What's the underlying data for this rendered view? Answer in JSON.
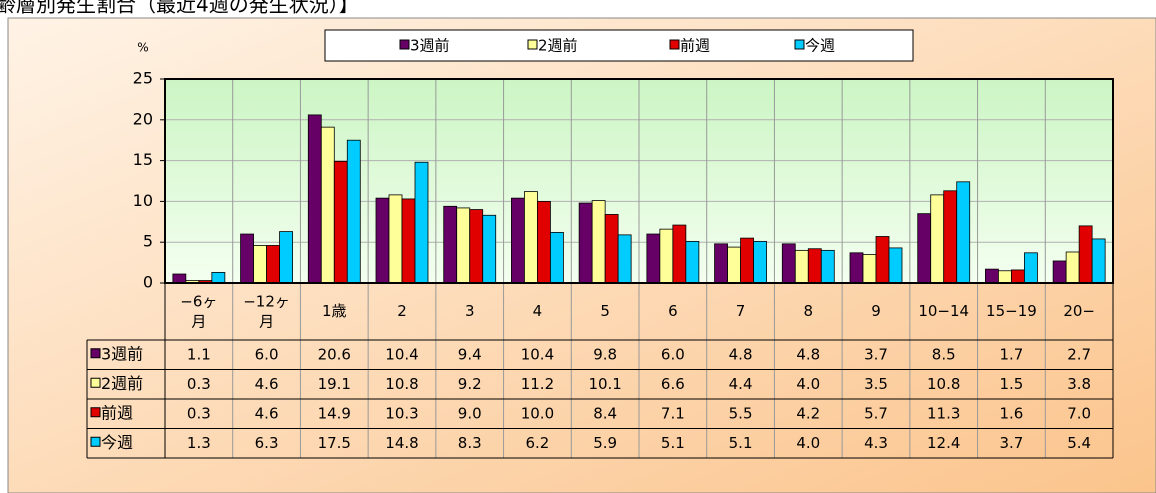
{
  "chart_data": {
    "type": "bar",
    "title": "齢層別発生割合（最近4週の発生状況）】",
    "y_label": "%",
    "categories": [
      "−6ヶ月",
      "−12ヶ月",
      "1歳",
      "2",
      "3",
      "4",
      "5",
      "6",
      "7",
      "8",
      "9",
      "10−14",
      "15−19",
      "20−"
    ],
    "series": [
      {
        "name": "3週前",
        "color": "#660066",
        "values": [
          1.1,
          6.0,
          20.6,
          10.4,
          9.4,
          10.4,
          9.8,
          6.0,
          4.8,
          4.8,
          3.7,
          8.5,
          1.7,
          2.7
        ],
        "value_labels": [
          "1.1",
          "6.0",
          "20.6",
          "10.4",
          "9.4",
          "10.4",
          "9.8",
          "6.0",
          "4.8",
          "4.8",
          "3.7",
          "8.5",
          "1.7",
          "2.7"
        ]
      },
      {
        "name": "2週前",
        "color": "#ffff99",
        "values": [
          0.3,
          4.6,
          19.1,
          10.8,
          9.2,
          11.2,
          10.1,
          6.6,
          4.4,
          4.0,
          3.5,
          10.8,
          1.5,
          3.8
        ],
        "value_labels": [
          "0.3",
          "4.6",
          "19.1",
          "10.8",
          "9.2",
          "11.2",
          "10.1",
          "6.6",
          "4.4",
          "4.0",
          "3.5",
          "10.8",
          "1.5",
          "3.8"
        ]
      },
      {
        "name": "前週",
        "color": "#e00000",
        "values": [
          0.3,
          4.6,
          14.9,
          10.3,
          9.0,
          10.0,
          8.4,
          7.1,
          5.5,
          4.2,
          5.7,
          11.3,
          1.6,
          7.0
        ],
        "value_labels": [
          "0.3",
          "4.6",
          "14.9",
          "10.3",
          "9.0",
          "10.0",
          "8.4",
          "7.1",
          "5.5",
          "4.2",
          "5.7",
          "11.3",
          "1.6",
          "7.0"
        ]
      },
      {
        "name": "今週",
        "color": "#00ccff",
        "values": [
          1.3,
          6.3,
          17.5,
          14.8,
          8.3,
          6.2,
          5.9,
          5.1,
          5.1,
          4.0,
          4.3,
          12.4,
          3.7,
          5.4
        ],
        "value_labels": [
          "1.3",
          "6.3",
          "17.5",
          "14.8",
          "8.3",
          "6.2",
          "5.9",
          "5.1",
          "5.1",
          "4.0",
          "4.3",
          "12.4",
          "3.7",
          "5.4"
        ]
      }
    ],
    "ylim": [
      0,
      25
    ],
    "yticks": [
      0,
      5,
      10,
      15,
      20,
      25
    ],
    "grid": true,
    "legend": "top"
  }
}
